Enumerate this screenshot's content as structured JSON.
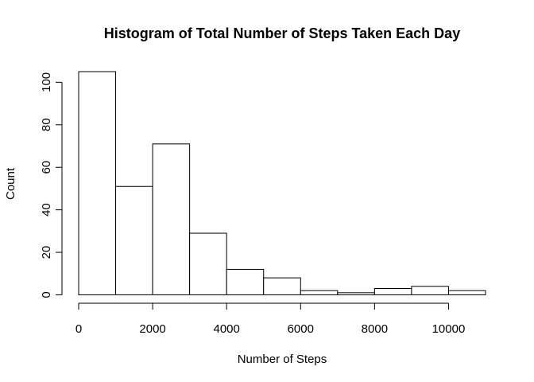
{
  "chart_data": {
    "type": "bar",
    "title": "Histogram of Total Number of Steps Taken Each Day",
    "xlabel": "Number of Steps",
    "ylabel": "Count",
    "bins": [
      {
        "start": 0,
        "end": 1000,
        "count": 105
      },
      {
        "start": 1000,
        "end": 2000,
        "count": 51
      },
      {
        "start": 2000,
        "end": 3000,
        "count": 71
      },
      {
        "start": 3000,
        "end": 4000,
        "count": 29
      },
      {
        "start": 4000,
        "end": 5000,
        "count": 12
      },
      {
        "start": 5000,
        "end": 6000,
        "count": 8
      },
      {
        "start": 6000,
        "end": 7000,
        "count": 2
      },
      {
        "start": 7000,
        "end": 8000,
        "count": 1
      },
      {
        "start": 8000,
        "end": 9000,
        "count": 3
      },
      {
        "start": 9000,
        "end": 10000,
        "count": 4
      },
      {
        "start": 10000,
        "end": 11000,
        "count": 2
      }
    ],
    "xlim": [
      0,
      11000
    ],
    "ylim": [
      0,
      105
    ],
    "xticks": [
      "0",
      "2000",
      "4000",
      "6000",
      "8000",
      "10000"
    ],
    "yticks": [
      "0",
      "20",
      "40",
      "60",
      "80",
      "100"
    ],
    "grid": false,
    "bar_fill": "#ffffff",
    "bar_stroke": "#000000"
  }
}
